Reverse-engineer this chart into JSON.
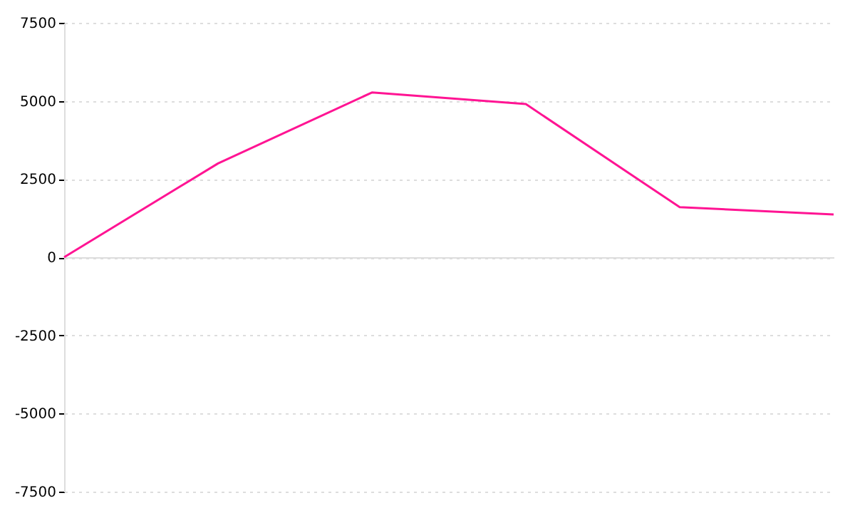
{
  "chart_data": {
    "type": "line",
    "categories": [
      null,
      null,
      null,
      null,
      null,
      null
    ],
    "series": [
      {
        "color": "#ff1493",
        "values": [
          0,
          3000,
          5270,
          4900,
          1600,
          1370
        ]
      }
    ],
    "ylim": [
      -7500,
      7500
    ],
    "yticks": [
      -7500,
      -5000,
      -2500,
      0,
      2500,
      5000,
      7500
    ],
    "grid": "y",
    "tick_labels": "y",
    "marker": "none",
    "line_style": "solid"
  }
}
